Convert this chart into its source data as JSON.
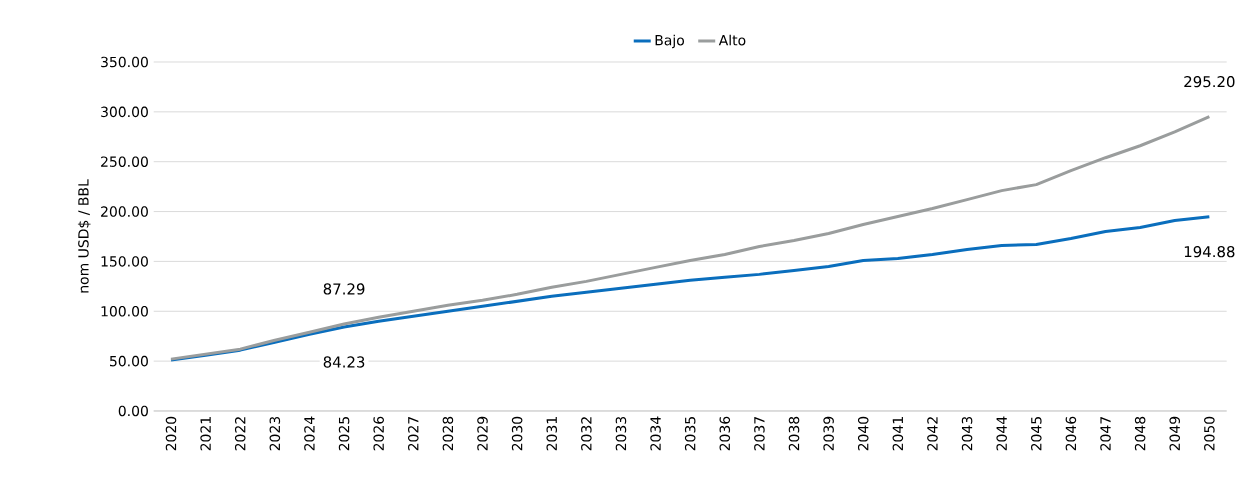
{
  "chart_data": {
    "type": "line",
    "ylabel": "nom USD$ / BBL",
    "categories": [
      "2020",
      "2021",
      "2022",
      "2023",
      "2024",
      "2025",
      "2026",
      "2027",
      "2028",
      "2029",
      "2030",
      "2031",
      "2032",
      "2033",
      "2034",
      "2035",
      "2036",
      "2037",
      "2038",
      "2039",
      "2040",
      "2041",
      "2042",
      "2043",
      "2044",
      "2045",
      "2046",
      "2047",
      "2048",
      "2049",
      "2050"
    ],
    "series": [
      {
        "name": "Bajo",
        "color": "#0a6ebd",
        "values": [
          51,
          56,
          61,
          69,
          77,
          84.23,
          90,
          95,
          100,
          105,
          110,
          115,
          119,
          123,
          127,
          131,
          134,
          137,
          141,
          145,
          151,
          153,
          157,
          162,
          166,
          167,
          173,
          180,
          184,
          191,
          194.88
        ],
        "value_labels": [
          null,
          null,
          null,
          null,
          null,
          "84.23",
          null,
          null,
          null,
          null,
          null,
          null,
          null,
          null,
          null,
          null,
          null,
          null,
          null,
          null,
          null,
          null,
          null,
          null,
          null,
          null,
          null,
          null,
          null,
          null,
          "194.88"
        ]
      },
      {
        "name": "Alto",
        "color": "#9a9d9d",
        "values": [
          52,
          57,
          62,
          71,
          79,
          87.29,
          94,
          100,
          106,
          111,
          117,
          124,
          130,
          137,
          144,
          151,
          157,
          165,
          171,
          178,
          187,
          195,
          203,
          212,
          221,
          227,
          241,
          254,
          266,
          280,
          295.2
        ],
        "value_labels": [
          null,
          null,
          null,
          null,
          null,
          "87.29",
          null,
          null,
          null,
          null,
          null,
          null,
          null,
          null,
          null,
          null,
          null,
          null,
          null,
          null,
          null,
          null,
          null,
          null,
          null,
          null,
          null,
          null,
          null,
          null,
          "295.20"
        ]
      }
    ],
    "ylim": [
      0,
      350
    ],
    "yticks": [
      {
        "value": 0,
        "label": "0.00"
      },
      {
        "value": 50,
        "label": "50.00"
      },
      {
        "value": 100,
        "label": "100.00"
      },
      {
        "value": 150,
        "label": "150.00"
      },
      {
        "value": 200,
        "label": "200.00"
      },
      {
        "value": 250,
        "label": "250.00"
      },
      {
        "value": 300,
        "label": "300.00"
      },
      {
        "value": 350,
        "label": "350.00"
      }
    ],
    "grid": "y",
    "legend": "top",
    "marker": "none",
    "line_style": "solid"
  }
}
